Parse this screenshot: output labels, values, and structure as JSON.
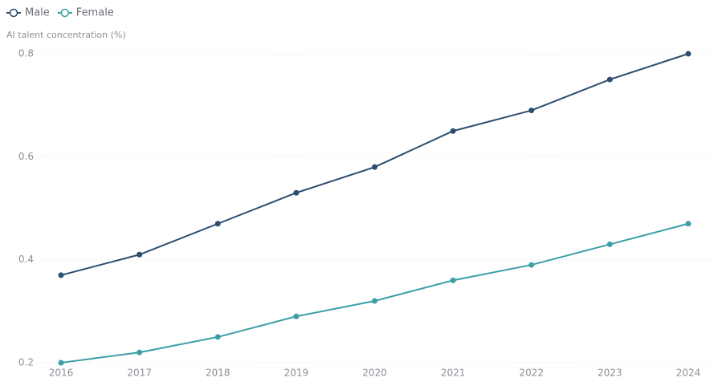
{
  "chart_data": {
    "type": "line",
    "y_label": "AI talent concentration (%)",
    "x": [
      2016,
      2017,
      2018,
      2019,
      2020,
      2021,
      2022,
      2023,
      2024
    ],
    "xlim": [
      2016,
      2024
    ],
    "series": [
      {
        "name": "Male",
        "color": "#2c4d70",
        "values": [
          0.37,
          0.41,
          0.47,
          0.53,
          0.58,
          0.65,
          0.69,
          0.75,
          0.8
        ]
      },
      {
        "name": "Female",
        "color": "#3b9fa6",
        "values": [
          0.2,
          0.22,
          0.25,
          0.29,
          0.32,
          0.36,
          0.39,
          0.43,
          0.47
        ]
      }
    ],
    "ylim": [
      0.2,
      0.8
    ],
    "yticks": [
      0.2,
      0.4,
      0.6,
      0.8
    ],
    "grid": true,
    "legend": "top-left"
  }
}
